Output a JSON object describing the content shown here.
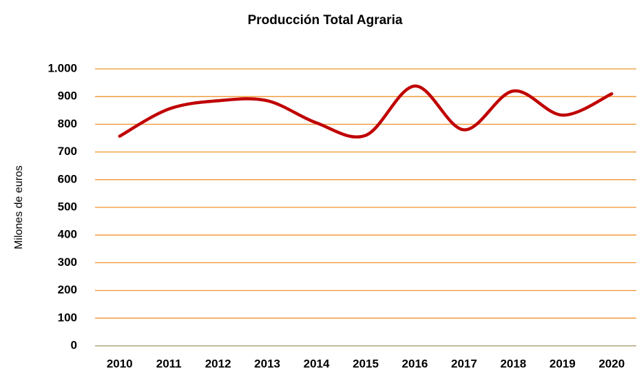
{
  "chart_data": {
    "type": "line",
    "title": "Producción Total Agraria",
    "y_label": "Milones de euros",
    "categories": [
      "2010",
      "2011",
      "2012",
      "2013",
      "2014",
      "2015",
      "2016",
      "2017",
      "2018",
      "2019",
      "2020"
    ],
    "series": [
      {
        "name": "Producción Total Agraria",
        "color": "#c00000",
        "values": [
          757,
          855,
          885,
          885,
          805,
          760,
          938,
          780,
          920,
          833,
          910
        ]
      }
    ],
    "ylim": [
      0,
      1000
    ],
    "yticks": [
      0,
      100,
      200,
      300,
      400,
      500,
      600,
      700,
      800,
      900,
      {
        "value": 1000,
        "label": "1.000"
      }
    ],
    "grid": true,
    "smooth": true
  }
}
